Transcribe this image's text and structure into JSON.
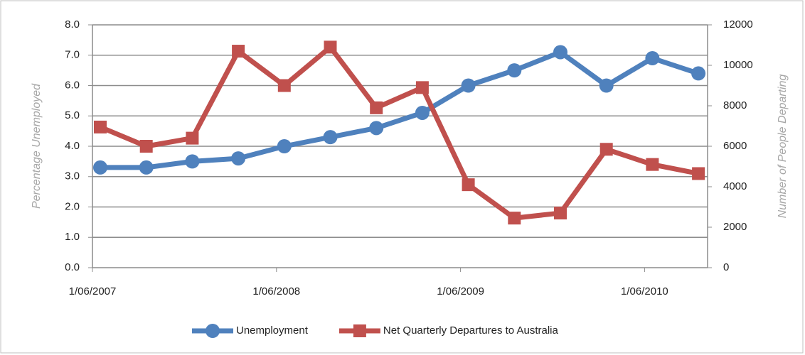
{
  "chart_data": {
    "type": "line",
    "categories": [
      "1/06/2007",
      null,
      null,
      null,
      "1/06/2008",
      null,
      null,
      null,
      "1/06/2009",
      null,
      null,
      null,
      "1/06/2010",
      null
    ],
    "y_label": "Percentage Unemployed",
    "y2_label": "Number of People Departing",
    "ylim": [
      0,
      8
    ],
    "yticks": [
      {
        "value": 0,
        "label": "0.0"
      },
      {
        "value": 1,
        "label": "1.0"
      },
      {
        "value": 2,
        "label": "2.0"
      },
      {
        "value": 3,
        "label": "3.0"
      },
      {
        "value": 4,
        "label": "4.0"
      },
      {
        "value": 5,
        "label": "5.0"
      },
      {
        "value": 6,
        "label": "6.0"
      },
      {
        "value": 7,
        "label": "7.0"
      },
      {
        "value": 8,
        "label": "8.0"
      }
    ],
    "y2lim": [
      0,
      12000
    ],
    "y2ticks": [
      0,
      2000,
      4000,
      6000,
      8000,
      10000,
      12000
    ],
    "grid": true,
    "legend": "bottom",
    "series": [
      {
        "name": "Unemployment",
        "color": "#4f81bd",
        "marker": "circle",
        "values": [
          3.3,
          3.3,
          3.5,
          3.6,
          4.0,
          4.3,
          4.6,
          5.1,
          6.0,
          6.5,
          7.1,
          6.0,
          6.9,
          6.4
        ]
      },
      {
        "name": "Net Quarterly Departures to Australia",
        "color": "#c0504d",
        "marker": "square",
        "axis": "y2",
        "values": [
          6950,
          6000,
          6400,
          10700,
          9000,
          10900,
          7900,
          8900,
          4100,
          2450,
          2700,
          5850,
          5100,
          4650
        ]
      }
    ]
  }
}
